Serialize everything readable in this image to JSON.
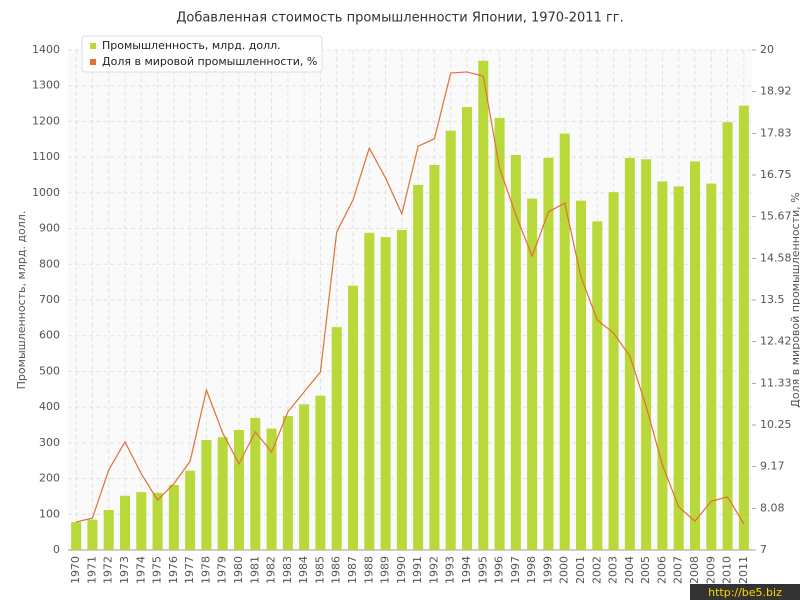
{
  "chart_data": {
    "type": "bar",
    "title": "Добавленная стоимость промышленности Японии, 1970-2011 гг.",
    "y_label": "Промышленность, млрд. долл.",
    "y2_label": "Доля в мировой промышленности, %",
    "categories": [
      "1970",
      "1971",
      "1972",
      "1973",
      "1974",
      "1975",
      "1976",
      "1977",
      "1978",
      "1979",
      "1980",
      "1981",
      "1982",
      "1983",
      "1984",
      "1985",
      "1986",
      "1987",
      "1988",
      "1989",
      "1990",
      "1991",
      "1992",
      "1993",
      "1994",
      "1995",
      "1996",
      "1997",
      "1998",
      "1999",
      "2000",
      "2001",
      "2002",
      "2003",
      "2004",
      "2005",
      "2006",
      "2007",
      "2008",
      "2009",
      "2010",
      "2011"
    ],
    "series": [
      {
        "name": "Промышленность, млрд. долл.",
        "color": "#b9d83a",
        "values": [
          78,
          85,
          112,
          152,
          162,
          160,
          182,
          222,
          308,
          316,
          336,
          370,
          340,
          375,
          408,
          432,
          624,
          740,
          888,
          876,
          896,
          1022,
          1078,
          1174,
          1240,
          1370,
          1210,
          1106,
          984,
          1098,
          1166,
          978,
          920,
          1002,
          1098,
          1094,
          1032,
          1018,
          1088,
          1026,
          1198,
          1244
        ]
      },
      {
        "name": "Доля в мировой промышленности, %",
        "color": "#e0703a",
        "type": "line",
        "axis": "y2",
        "values": [
          7.73,
          7.83,
          9.08,
          9.81,
          8.98,
          8.3,
          8.72,
          9.31,
          11.16,
          10.04,
          9.24,
          10.07,
          9.55,
          10.59,
          11.11,
          11.63,
          15.27,
          16.1,
          17.45,
          16.67,
          15.74,
          17.5,
          17.69,
          19.4,
          19.43,
          19.32,
          16.93,
          15.71,
          14.64,
          15.79,
          16.02,
          14.1,
          12.98,
          12.64,
          12.04,
          10.74,
          9.21,
          8.12,
          7.75,
          8.27,
          8.38,
          7.68
        ]
      }
    ],
    "ylim": [
      0,
      1400
    ],
    "yticks": [
      0,
      100,
      200,
      300,
      400,
      500,
      600,
      700,
      800,
      900,
      1000,
      1100,
      1200,
      1300,
      1400
    ],
    "y2lim": [
      7,
      20
    ],
    "y2ticks": [
      7,
      8.08,
      9.17,
      10.25,
      11.33,
      12.42,
      13.5,
      14.58,
      15.67,
      16.75,
      17.83,
      18.92,
      20
    ],
    "grid": true,
    "legend": "top-left"
  },
  "watermark": "http://be5.biz"
}
